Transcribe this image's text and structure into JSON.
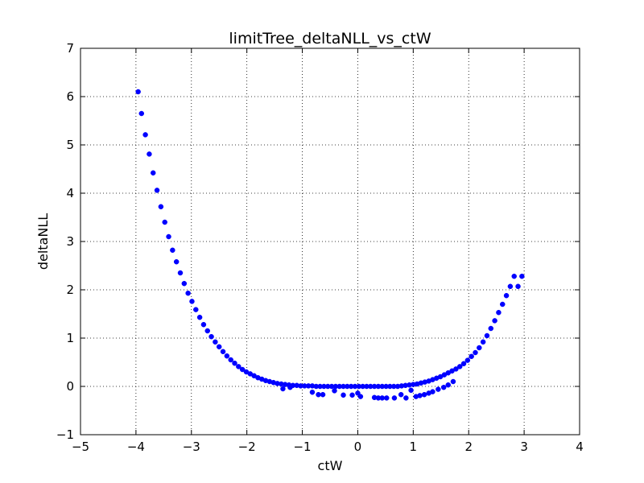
{
  "chart_data": {
    "type": "scatter",
    "title": "limitTree_deltaNLL_vs_ctW",
    "xlabel": "ctW",
    "ylabel": "deltaNLL",
    "xlim": [
      -5,
      4
    ],
    "ylim": [
      -1,
      7
    ],
    "xticks": [
      -5,
      -4,
      -3,
      -2,
      -1,
      0,
      1,
      2,
      3,
      4
    ],
    "yticks": [
      -1,
      0,
      1,
      2,
      3,
      4,
      5,
      6,
      7
    ],
    "xtick_labels": [
      "−5",
      "−4",
      "−3",
      "−2",
      "−1",
      "0",
      "1",
      "2",
      "3",
      "4"
    ],
    "ytick_labels": [
      "−1",
      "0",
      "1",
      "2",
      "3",
      "4",
      "5",
      "6",
      "7"
    ],
    "grid": true,
    "marker_color": "#0000ff",
    "x": [
      -3.96,
      -3.9,
      -3.83,
      -3.76,
      -3.69,
      -3.62,
      -3.55,
      -3.48,
      -3.41,
      -3.34,
      -3.27,
      -3.2,
      -3.13,
      -3.06,
      -2.99,
      -2.92,
      -2.85,
      -2.78,
      -2.71,
      -2.64,
      -2.57,
      -2.5,
      -2.43,
      -2.36,
      -2.29,
      -2.22,
      -2.15,
      -2.08,
      -2.01,
      -1.94,
      -1.87,
      -1.8,
      -1.73,
      -1.66,
      -1.59,
      -1.52,
      -1.45,
      -1.38,
      -1.31,
      -1.24,
      -1.17,
      -1.1,
      -1.03,
      -0.96,
      -0.89,
      -0.82,
      -0.75,
      -0.68,
      -0.61,
      -0.54,
      -0.47,
      -0.4,
      -0.33,
      -0.26,
      -0.19,
      -0.12,
      -0.05,
      0.02,
      0.09,
      0.16,
      0.23,
      0.3,
      0.37,
      0.44,
      0.51,
      0.58,
      0.65,
      0.72,
      0.79,
      0.86,
      0.93,
      1.0,
      1.07,
      1.14,
      1.21,
      1.28,
      1.35,
      1.42,
      1.49,
      1.56,
      1.63,
      1.7,
      1.77,
      1.84,
      1.91,
      1.98,
      2.05,
      2.12,
      2.19,
      2.26,
      2.33,
      2.4,
      2.47,
      2.54,
      2.61,
      2.68,
      2.75,
      2.82,
      2.89,
      2.96,
      -1.35,
      -1.22,
      -0.82,
      -0.71,
      -0.63,
      -0.42,
      -0.26,
      -0.1,
      0.0,
      0.05,
      0.3,
      0.37,
      0.44,
      0.52,
      0.66,
      0.78,
      0.87,
      0.96,
      1.05,
      1.12,
      1.2,
      1.28,
      1.35,
      1.45,
      1.55,
      1.63,
      1.72
    ],
    "y": [
      6.1,
      5.65,
      5.21,
      4.81,
      4.42,
      4.06,
      3.72,
      3.4,
      3.1,
      2.82,
      2.58,
      2.35,
      2.13,
      1.93,
      1.76,
      1.59,
      1.43,
      1.28,
      1.15,
      1.03,
      0.92,
      0.82,
      0.72,
      0.63,
      0.55,
      0.48,
      0.41,
      0.35,
      0.3,
      0.26,
      0.22,
      0.18,
      0.15,
      0.12,
      0.1,
      0.08,
      0.06,
      0.05,
      0.04,
      0.03,
      0.02,
      0.02,
      0.01,
      0.01,
      0.01,
      0.01,
      0.0,
      0.0,
      0.0,
      0.0,
      0.0,
      0.0,
      0.0,
      0.0,
      0.0,
      0.0,
      0.0,
      0.0,
      0.0,
      0.0,
      0.0,
      0.0,
      0.0,
      0.0,
      0.0,
      0.0,
      0.0,
      0.0,
      0.01,
      0.02,
      0.03,
      0.04,
      0.05,
      0.07,
      0.09,
      0.11,
      0.14,
      0.17,
      0.2,
      0.24,
      0.28,
      0.32,
      0.36,
      0.41,
      0.47,
      0.54,
      0.62,
      0.7,
      0.8,
      0.92,
      1.05,
      1.2,
      1.36,
      1.53,
      1.7,
      1.88,
      2.07,
      2.28,
      2.07,
      2.28,
      -0.05,
      -0.02,
      -0.12,
      -0.17,
      -0.17,
      -0.09,
      -0.18,
      -0.18,
      -0.14,
      -0.21,
      -0.23,
      -0.24,
      -0.24,
      -0.24,
      -0.24,
      -0.17,
      -0.24,
      -0.08,
      -0.21,
      -0.19,
      -0.17,
      -0.14,
      -0.11,
      -0.06,
      -0.02,
      0.03,
      0.1
    ]
  }
}
